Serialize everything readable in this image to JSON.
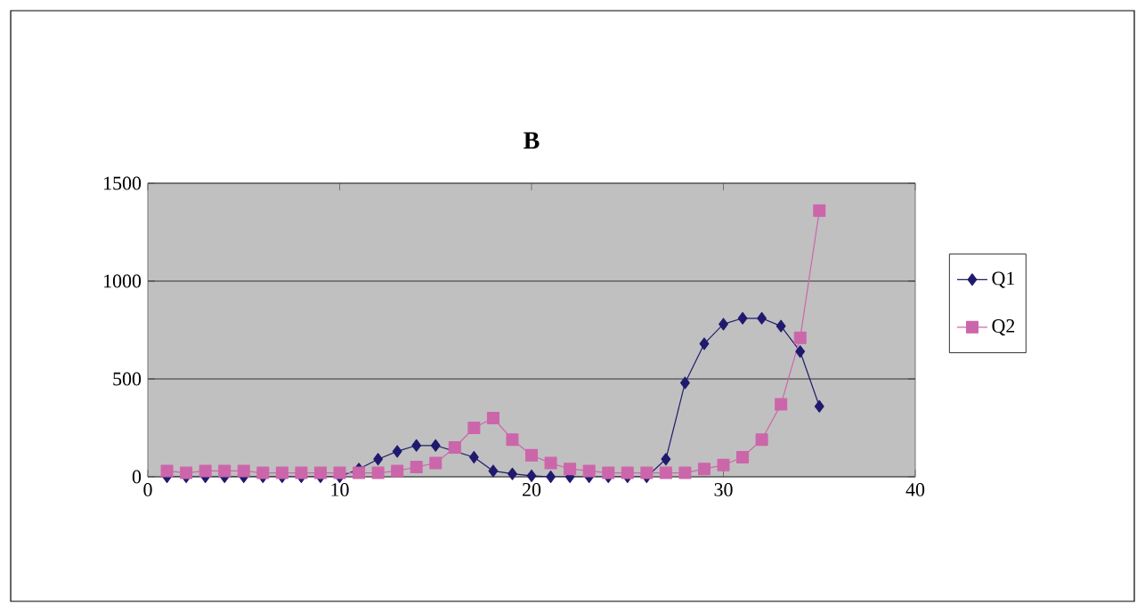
{
  "chart_data": {
    "type": "line",
    "title": "B",
    "x": [
      1,
      2,
      3,
      4,
      5,
      6,
      7,
      8,
      9,
      10,
      11,
      12,
      13,
      14,
      15,
      16,
      17,
      18,
      19,
      20,
      21,
      22,
      23,
      24,
      25,
      26,
      27,
      28,
      29,
      30,
      31,
      32,
      33,
      34,
      35
    ],
    "series": [
      {
        "name": "Q1",
        "color": "#1f1a6e",
        "marker": "diamond",
        "values": [
          0,
          0,
          0,
          0,
          0,
          0,
          0,
          0,
          0,
          0,
          40,
          90,
          130,
          160,
          160,
          null,
          100,
          30,
          15,
          5,
          0,
          0,
          0,
          0,
          0,
          0,
          90,
          480,
          680,
          780,
          810,
          810,
          770,
          640,
          360
        ]
      },
      {
        "name": "Q2",
        "color": "#cc66aa",
        "marker": "square",
        "values": [
          30,
          20,
          30,
          30,
          30,
          20,
          20,
          20,
          20,
          20,
          20,
          20,
          30,
          50,
          70,
          150,
          250,
          300,
          190,
          110,
          70,
          40,
          30,
          20,
          20,
          20,
          20,
          20,
          40,
          60,
          100,
          190,
          370,
          710,
          1360
        ]
      }
    ],
    "xlim": [
      0,
      40
    ],
    "xticks": [
      0,
      10,
      20,
      30,
      40
    ],
    "ylim": [
      0,
      1500
    ],
    "yticks": [
      0,
      500,
      1000,
      1500
    ],
    "grid": "y",
    "legend": "right"
  }
}
